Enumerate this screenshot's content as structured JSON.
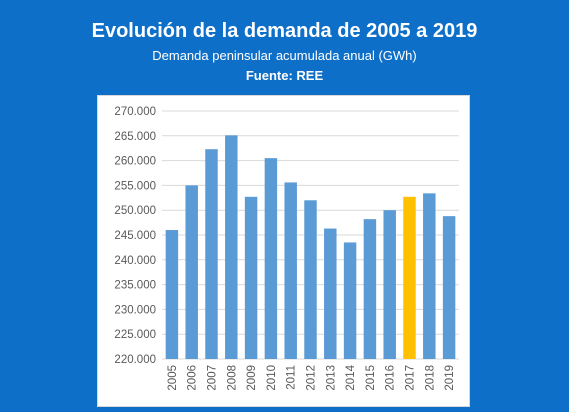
{
  "header": {
    "title": "Evolución de la demanda de 2005 a 2019",
    "subtitle": "Demanda peninsular acumulada anual (GWh)",
    "source": "Fuente: REE"
  },
  "colors": {
    "background": "#0e6fc8",
    "bar": "#5b9bd5",
    "highlight": "#ffc000",
    "grid": "#d9d9d9"
  },
  "chart_data": {
    "type": "bar",
    "title": "Evolución de la demanda de 2005 a 2019",
    "subtitle": "Demanda peninsular acumulada anual (GWh)",
    "xlabel": "",
    "ylabel": "",
    "categories": [
      "2005",
      "2006",
      "2007",
      "2008",
      "2009",
      "2010",
      "2011",
      "2012",
      "2013",
      "2014",
      "2015",
      "2016",
      "2017",
      "2018",
      "2019"
    ],
    "values": [
      246000,
      255000,
      262300,
      265100,
      252700,
      260500,
      255600,
      252000,
      246300,
      243500,
      248200,
      250000,
      252700,
      253400,
      248800
    ],
    "highlight_category": "2017",
    "ylim": [
      220000,
      270000
    ],
    "yticks": [
      220000,
      225000,
      230000,
      235000,
      240000,
      245000,
      250000,
      255000,
      260000,
      265000,
      270000
    ],
    "ytick_labels": [
      "220.000",
      "225.000",
      "230.000",
      "235.000",
      "240.000",
      "245.000",
      "250.000",
      "255.000",
      "260.000",
      "265.000",
      "270.000"
    ],
    "grid": true,
    "legend": "none"
  }
}
